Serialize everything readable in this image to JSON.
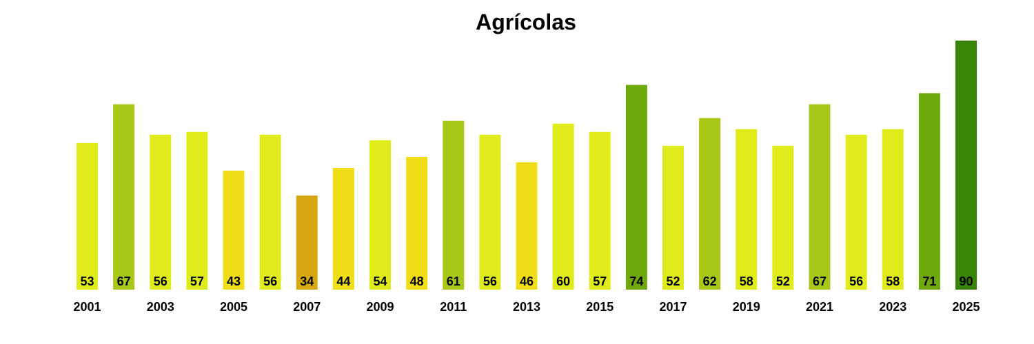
{
  "chart_data": {
    "type": "bar",
    "title": "Agrícolas",
    "xlabel": "",
    "ylabel": "",
    "ylim": [
      0,
      90
    ],
    "grid": false,
    "categories": [
      "2001",
      "2002",
      "2003",
      "2004",
      "2005",
      "2006",
      "2007",
      "2008",
      "2009",
      "2010",
      "2011",
      "2012",
      "2013",
      "2014",
      "2015",
      "2016",
      "2017",
      "2018",
      "2019",
      "2020",
      "2021",
      "2022",
      "2023",
      "2024",
      "2025"
    ],
    "values": [
      53,
      67,
      56,
      57,
      43,
      56,
      34,
      44,
      54,
      48,
      61,
      56,
      46,
      60,
      57,
      74,
      52,
      62,
      58,
      52,
      67,
      56,
      58,
      71,
      90
    ],
    "tick_labels": [
      "2001",
      "2003",
      "2005",
      "2007",
      "2009",
      "2011",
      "2013",
      "2015",
      "2017",
      "2019",
      "2021",
      "2023",
      "2025"
    ],
    "colors": [
      "#e0eb1c",
      "#a8c818",
      "#e0eb1c",
      "#e0eb1c",
      "#f0de18",
      "#e0eb1c",
      "#d8a812",
      "#f0de18",
      "#e0eb1c",
      "#f0de18",
      "#a8c818",
      "#e0eb1c",
      "#f0de18",
      "#e0eb1c",
      "#e0eb1c",
      "#6ea80c",
      "#e0eb1c",
      "#a8c818",
      "#e0eb1c",
      "#e0eb1c",
      "#a8c818",
      "#e0eb1c",
      "#e0eb1c",
      "#6ea80c",
      "#38850a"
    ]
  }
}
